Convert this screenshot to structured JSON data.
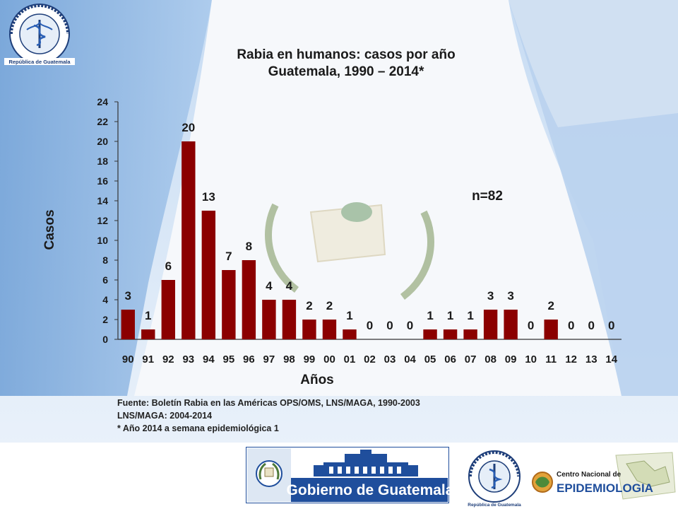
{
  "title": {
    "line1": "Rabia en humanos: casos por año",
    "line2": "Guatemala, 1990 – 2014*"
  },
  "annotation": {
    "n_label": "n=82"
  },
  "chart_data": {
    "type": "bar",
    "title": "Rabia en humanos: casos por año Guatemala, 1990 – 2014*",
    "xlabel": "Años",
    "ylabel": "Casos",
    "ylim": [
      0,
      24
    ],
    "yticks": [
      0,
      2,
      4,
      6,
      8,
      10,
      12,
      14,
      16,
      18,
      20,
      22,
      24
    ],
    "grid": false,
    "legend": "none",
    "categories": [
      "90",
      "91",
      "92",
      "93",
      "94",
      "95",
      "96",
      "97",
      "98",
      "99",
      "00",
      "01",
      "02",
      "03",
      "04",
      "05",
      "06",
      "07",
      "08",
      "09",
      "10",
      "11",
      "12",
      "13",
      "14"
    ],
    "values": [
      3,
      1,
      6,
      20,
      13,
      7,
      8,
      4,
      4,
      2,
      2,
      1,
      0,
      0,
      0,
      1,
      1,
      1,
      3,
      3,
      0,
      2,
      0,
      0,
      0
    ],
    "bar_color": "#8b0000",
    "label_color": "#1a1a1a"
  },
  "source": {
    "line1": "Fuente: Boletín Rabia en las Américas OPS/OMS, LNS/MAGA, 1990-2003",
    "line2": "LNS/MAGA: 2004-2014",
    "line3": "* Año 2014 a semana epidemiológica 1"
  },
  "logos": {
    "msp_ring_text": "Ministerio de Salud Pública",
    "msp_country": "República de Guatemala",
    "gobierno": "Gobierno de Guatemala",
    "centro_line1": "Centro Nacional de",
    "centro_line2": "EPIDEMIOLOGIA"
  },
  "colors": {
    "flag_blue": "#a9c9ec",
    "bar": "#8b0000",
    "gob_blue": "#1f4e9c"
  }
}
